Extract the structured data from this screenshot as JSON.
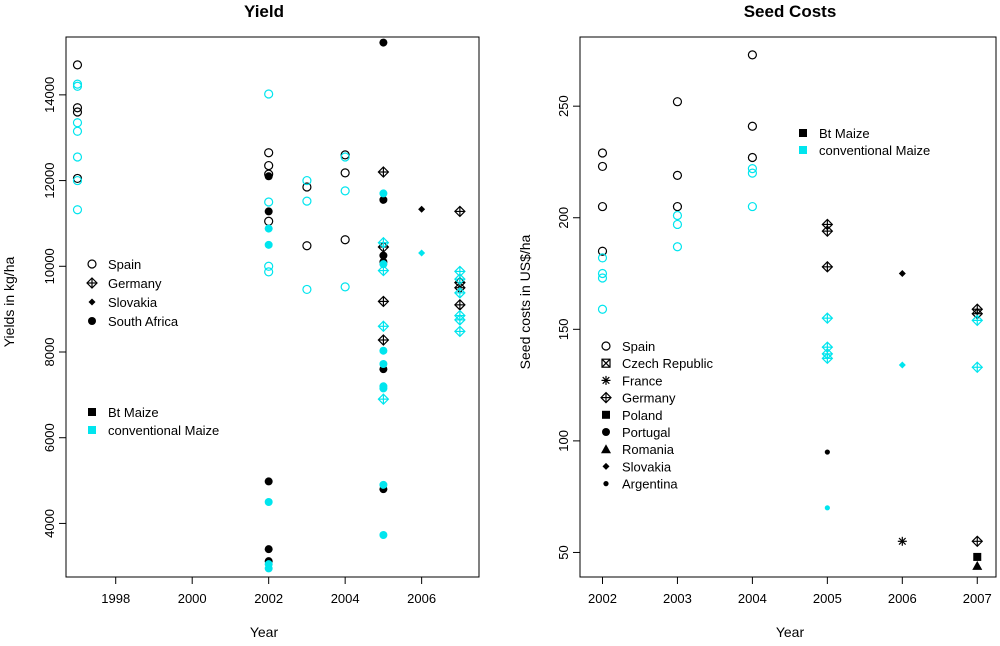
{
  "colors": {
    "bt": "#000000",
    "conventional": "#00e5ee"
  },
  "chart_data": [
    {
      "type": "scatter",
      "title": "Yield",
      "xlabel": "Year",
      "ylabel": "Yields in kg/ha",
      "xlim": [
        1996.7,
        2007.5
      ],
      "ylim": [
        2750,
        15350
      ],
      "xticks": [
        1998,
        2000,
        2002,
        2004,
        2006
      ],
      "yticks": [
        4000,
        6000,
        8000,
        10000,
        12000,
        14000
      ],
      "legend_marker": [
        {
          "label": "Spain",
          "marker": "circle-open"
        },
        {
          "label": "Germany",
          "marker": "diamond-plus"
        },
        {
          "label": "Slovakia",
          "marker": "diamond-small"
        },
        {
          "label": "South Africa",
          "marker": "circle-filled"
        }
      ],
      "legend_color": [
        {
          "label": "Bt Maize",
          "color": "bt"
        },
        {
          "label": "conventional Maize",
          "color": "conventional"
        }
      ],
      "series": [
        {
          "country": "Spain",
          "marker": "circle-open",
          "group": "bt",
          "points": [
            [
              1997,
              14700
            ],
            [
              1997,
              13700
            ],
            [
              1997,
              13600
            ],
            [
              1997,
              12050
            ],
            [
              2002,
              12650
            ],
            [
              2002,
              12350
            ],
            [
              2002,
              12150
            ],
            [
              2002,
              11050
            ],
            [
              2003,
              11850
            ],
            [
              2003,
              10480
            ],
            [
              2004,
              12600
            ],
            [
              2004,
              12180
            ],
            [
              2004,
              10620
            ]
          ]
        },
        {
          "country": "Spain",
          "marker": "circle-open",
          "group": "conventional",
          "points": [
            [
              1997,
              14250
            ],
            [
              1997,
              14200
            ],
            [
              1997,
              13350
            ],
            [
              1997,
              13150
            ],
            [
              1997,
              12550
            ],
            [
              1997,
              12000
            ],
            [
              1997,
              11320
            ],
            [
              2002,
              14020
            ],
            [
              2002,
              11500
            ],
            [
              2002,
              10000
            ],
            [
              2002,
              9870
            ],
            [
              2003,
              12000
            ],
            [
              2003,
              11520
            ],
            [
              2003,
              9460
            ],
            [
              2004,
              12550
            ],
            [
              2004,
              11760
            ],
            [
              2004,
              9520
            ]
          ]
        },
        {
          "country": "Germany",
          "marker": "diamond-plus",
          "group": "bt",
          "points": [
            [
              2005,
              12200
            ],
            [
              2005,
              10450
            ],
            [
              2005,
              9180
            ],
            [
              2005,
              8280
            ],
            [
              2007,
              11280
            ],
            [
              2007,
              9620
            ],
            [
              2007,
              9500
            ],
            [
              2007,
              9100
            ]
          ]
        },
        {
          "country": "Germany",
          "marker": "diamond-plus",
          "group": "conventional",
          "points": [
            [
              2005,
              10550
            ],
            [
              2005,
              9900
            ],
            [
              2005,
              8600
            ],
            [
              2005,
              6900
            ],
            [
              2007,
              9880
            ],
            [
              2007,
              9700
            ],
            [
              2007,
              9380
            ],
            [
              2007,
              8850
            ],
            [
              2007,
              8750
            ],
            [
              2007,
              8480
            ]
          ]
        },
        {
          "country": "Slovakia",
          "marker": "diamond-small",
          "group": "bt",
          "points": [
            [
              2006,
              11330
            ]
          ]
        },
        {
          "country": "Slovakia",
          "marker": "diamond-small",
          "group": "conventional",
          "points": [
            [
              2006,
              10310
            ]
          ]
        },
        {
          "country": "South Africa",
          "marker": "circle-filled",
          "group": "bt",
          "points": [
            [
              2002,
              12100
            ],
            [
              2002,
              11280
            ],
            [
              2002,
              4980
            ],
            [
              2002,
              3400
            ],
            [
              2002,
              3120
            ],
            [
              2005,
              15220
            ],
            [
              2005,
              11550
            ],
            [
              2005,
              10250
            ],
            [
              2005,
              10100
            ],
            [
              2005,
              7600
            ],
            [
              2005,
              4800
            ]
          ]
        },
        {
          "country": "South Africa",
          "marker": "circle-filled",
          "group": "conventional",
          "points": [
            [
              2002,
              10880
            ],
            [
              2002,
              10500
            ],
            [
              2002,
              4500
            ],
            [
              2002,
              3050
            ],
            [
              2002,
              2950
            ],
            [
              2005,
              11700
            ],
            [
              2005,
              10050
            ],
            [
              2005,
              8030
            ],
            [
              2005,
              7720
            ],
            [
              2005,
              7200
            ],
            [
              2005,
              7150
            ],
            [
              2005,
              4900
            ],
            [
              2005,
              3730
            ]
          ]
        }
      ]
    },
    {
      "type": "scatter",
      "title": "Seed Costs",
      "xlabel": "Year",
      "ylabel": "Seed costs in US$/ha",
      "xlim": [
        2001.7,
        2007.25
      ],
      "ylim": [
        39,
        281
      ],
      "xticks": [
        2002,
        2003,
        2004,
        2005,
        2006,
        2007
      ],
      "yticks": [
        50,
        100,
        150,
        200,
        250
      ],
      "legend_marker": [
        {
          "label": "Spain",
          "marker": "circle-open"
        },
        {
          "label": "Czech Republic",
          "marker": "square-x"
        },
        {
          "label": "France",
          "marker": "asterisk"
        },
        {
          "label": "Germany",
          "marker": "diamond-plus"
        },
        {
          "label": "Poland",
          "marker": "square-filled"
        },
        {
          "label": "Portugal",
          "marker": "circle-filled"
        },
        {
          "label": "Romania",
          "marker": "triangle-filled"
        },
        {
          "label": "Slovakia",
          "marker": "diamond-small"
        },
        {
          "label": "Argentina",
          "marker": "dot"
        }
      ],
      "legend_color": [
        {
          "label": "Bt Maize",
          "color": "bt"
        },
        {
          "label": "conventional Maize",
          "color": "conventional"
        }
      ],
      "series": [
        {
          "country": "Spain",
          "marker": "circle-open",
          "group": "bt",
          "points": [
            [
              2002,
              229
            ],
            [
              2002,
              223
            ],
            [
              2002,
              205
            ],
            [
              2002,
              185
            ],
            [
              2003,
              252
            ],
            [
              2003,
              219
            ],
            [
              2003,
              205
            ],
            [
              2004,
              273
            ],
            [
              2004,
              241
            ],
            [
              2004,
              227
            ]
          ]
        },
        {
          "country": "Spain",
          "marker": "circle-open",
          "group": "conventional",
          "points": [
            [
              2002,
              182
            ],
            [
              2002,
              175
            ],
            [
              2002,
              173
            ],
            [
              2002,
              159
            ],
            [
              2003,
              201
            ],
            [
              2003,
              197
            ],
            [
              2003,
              187
            ],
            [
              2004,
              222
            ],
            [
              2004,
              220
            ],
            [
              2004,
              205
            ]
          ]
        },
        {
          "country": "Germany",
          "marker": "diamond-plus",
          "group": "bt",
          "points": [
            [
              2005,
              197
            ],
            [
              2005,
              194
            ],
            [
              2005,
              178
            ],
            [
              2007,
              159
            ],
            [
              2007,
              157
            ],
            [
              2007,
              55
            ]
          ]
        },
        {
          "country": "Germany",
          "marker": "diamond-plus",
          "group": "conventional",
          "points": [
            [
              2005,
              155
            ],
            [
              2005,
              142
            ],
            [
              2005,
              139
            ],
            [
              2005,
              137
            ],
            [
              2007,
              154
            ],
            [
              2007,
              133
            ]
          ]
        },
        {
          "country": "Slovakia",
          "marker": "diamond-small",
          "group": "bt",
          "points": [
            [
              2006,
              175
            ]
          ]
        },
        {
          "country": "Slovakia",
          "marker": "diamond-small",
          "group": "conventional",
          "points": [
            [
              2006,
              134
            ]
          ]
        },
        {
          "country": "Argentina",
          "marker": "dot",
          "group": "bt",
          "points": [
            [
              2005,
              95
            ]
          ]
        },
        {
          "country": "Argentina",
          "marker": "dot",
          "group": "conventional",
          "points": [
            [
              2005,
              70
            ]
          ]
        },
        {
          "country": "France",
          "marker": "asterisk",
          "group": "bt",
          "points": [
            [
              2006,
              55
            ]
          ]
        },
        {
          "country": "Poland",
          "marker": "square-filled",
          "group": "bt",
          "points": [
            [
              2007,
              48
            ]
          ]
        },
        {
          "country": "Romania",
          "marker": "triangle-filled",
          "group": "bt",
          "points": [
            [
              2007,
              44
            ]
          ]
        }
      ]
    }
  ]
}
